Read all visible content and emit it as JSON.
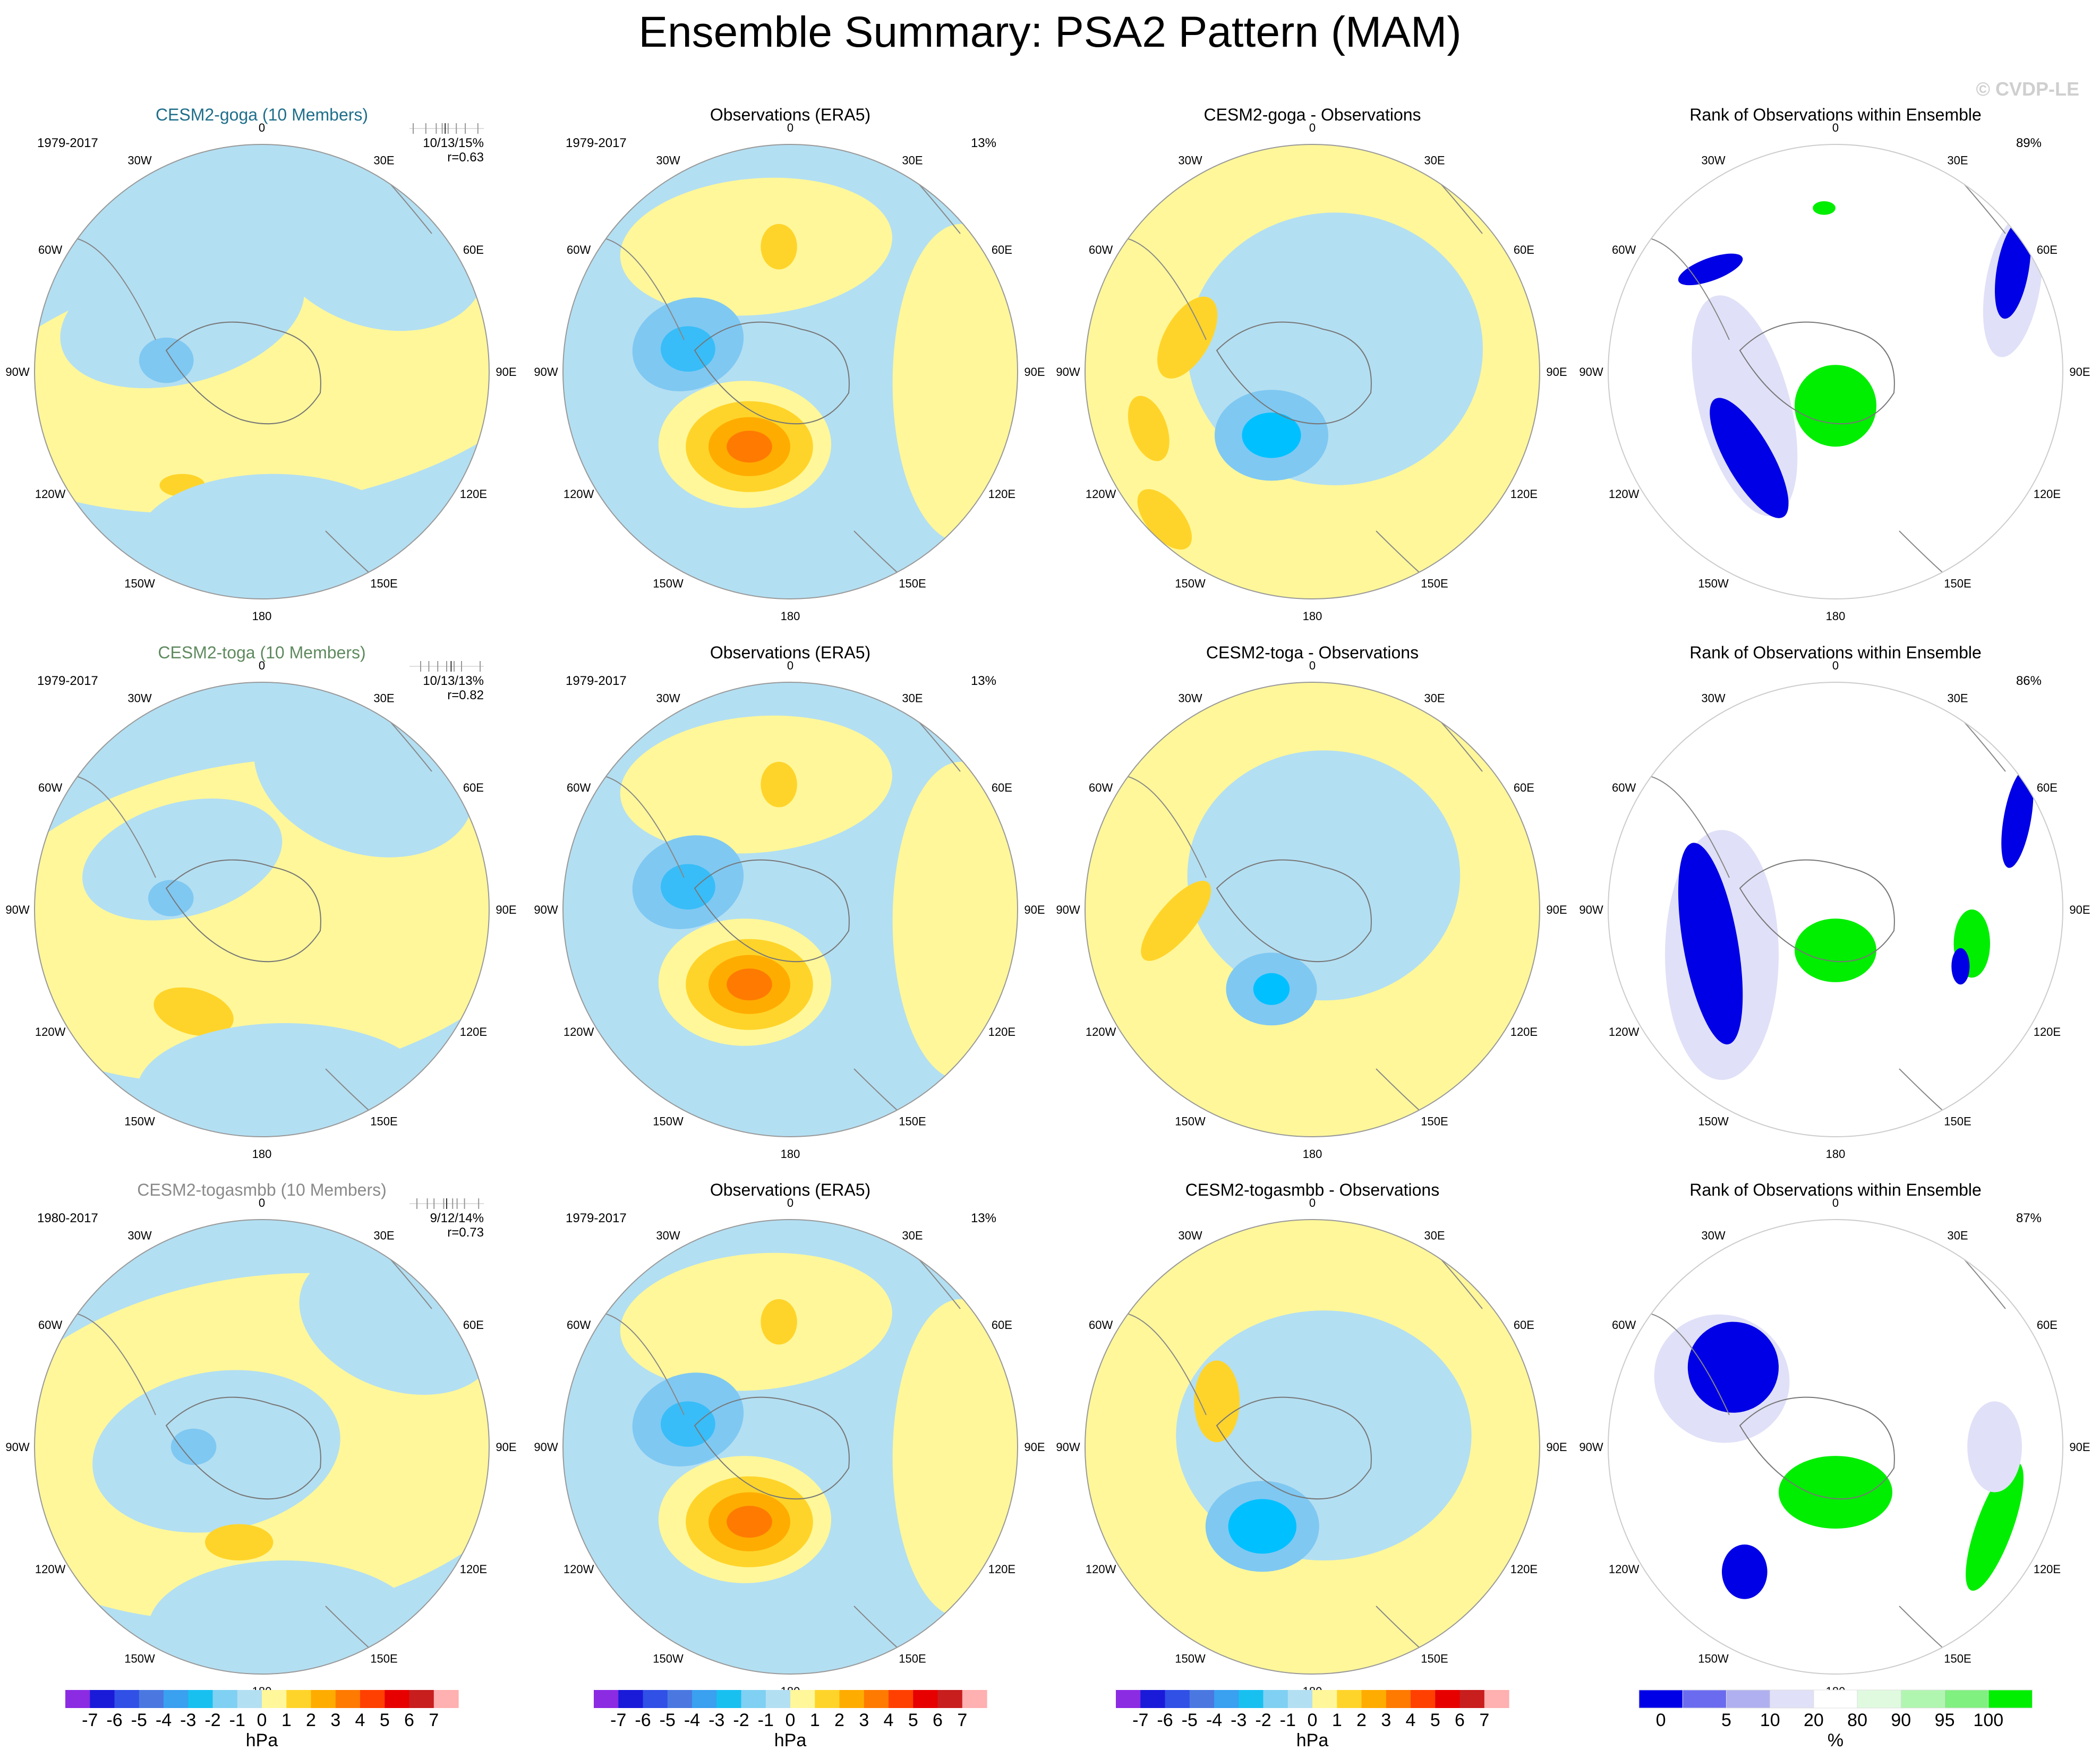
{
  "page": {
    "title": "Ensemble Summary: PSA2 Pattern (MAM)",
    "watermark": "© CVDP-LE"
  },
  "lon_labels": [
    "0",
    "30E",
    "60E",
    "90E",
    "120E",
    "150E",
    "180",
    "150W",
    "120W",
    "90W",
    "60W",
    "30W"
  ],
  "rows": [
    {
      "model_title": "CESM2-goga (10 Members)",
      "title_color": "#1f6f8b",
      "model_years": "1979-2017",
      "stats": "10/13/15%",
      "corr": "r=0.63",
      "ticks": [
        0.05,
        0.22,
        0.36,
        0.44,
        0.48,
        0.52,
        0.63,
        0.75,
        0.92
      ],
      "obs_title": "Observations (ERA5)",
      "obs_years": "1979-2017",
      "obs_pct": "13%",
      "diff_title": "CESM2-goga - Observations",
      "rank_title": "Rank of Observations within Ensemble",
      "rank_pct": "89%"
    },
    {
      "model_title": "CESM2-toga (10 Members)",
      "title_color": "#5f8a5f",
      "model_years": "1979-2017",
      "stats": "10/13/13%",
      "corr": "r=0.82",
      "ticks": [
        0.15,
        0.26,
        0.38,
        0.5,
        0.56,
        0.6,
        0.7,
        0.95
      ],
      "obs_title": "Observations (ERA5)",
      "obs_years": "1979-2017",
      "obs_pct": "13%",
      "diff_title": "CESM2-toga - Observations",
      "rank_title": "Rank of Observations within Ensemble",
      "rank_pct": "86%"
    },
    {
      "model_title": "CESM2-togasmbb (10 Members)",
      "title_color": "#8a8a8a",
      "model_years": "1980-2017",
      "stats": "9/12/14%",
      "corr": "r=0.73",
      "ticks": [
        0.1,
        0.24,
        0.33,
        0.46,
        0.5,
        0.58,
        0.64,
        0.74,
        0.93
      ],
      "obs_title": "Observations (ERA5)",
      "obs_years": "1979-2017",
      "obs_pct": "13%",
      "diff_title": "CESM2-togasmbb - Observations",
      "rank_title": "Rank of Observations within Ensemble",
      "rank_pct": "87%"
    }
  ],
  "colorbar_hpa": {
    "labels": [
      "-7",
      "-6",
      "-5",
      "-4",
      "-3",
      "-2",
      "-1",
      "0",
      "1",
      "2",
      "3",
      "4",
      "5",
      "6",
      "7"
    ],
    "colors": [
      "#8b2be2",
      "#1a1ad9",
      "#3050e6",
      "#4a78e0",
      "#3aa0f0",
      "#18c0f0",
      "#7fd0f2",
      "#b3dff2",
      "#fff79a",
      "#ffd42a",
      "#ffac00",
      "#ff7a00",
      "#ff4000",
      "#e60000",
      "#c81e1e",
      "#ffb0b0"
    ],
    "unit": "hPa"
  },
  "colorbar_rank": {
    "labels": [
      "0",
      "5",
      "10",
      "20",
      "80",
      "90",
      "95",
      "100"
    ],
    "colors": [
      "#0000e6",
      "#6b6bf0",
      "#b0b0f0",
      "#e0e0f8",
      "#ffffff",
      "#e0fae0",
      "#b0f5b0",
      "#80f080",
      "#00ee00"
    ],
    "unit": "%"
  },
  "palette": {
    "blue_light": "#b3dff2",
    "blue_mid": "#7fc8f2",
    "blue_dark": "#38bdf8",
    "blue_deep": "#00c0ff",
    "yellow": "#fff79a",
    "yellow_dark": "#ffd42a",
    "orange": "#ffac00",
    "orange_dark": "#ff7a00",
    "rank_blue": "#0000e6",
    "rank_lavender": "#e0e0f8",
    "rank_green": "#00ee00",
    "rank_lightgreen": "#e0fae0"
  },
  "chart_data": {
    "type": "heatmap",
    "description_units": "hPa",
    "projection": "south polar stereographic",
    "panels_per_row": [
      "model ensemble mean",
      "observations",
      "model minus observations",
      "rank of observations"
    ],
    "colorbar_levels_hpa": [
      -7,
      -6,
      -5,
      -4,
      -3,
      -2,
      -1,
      0,
      1,
      2,
      3,
      4,
      5,
      6,
      7
    ],
    "colorbar_levels_rank_pct": [
      0,
      5,
      10,
      20,
      80,
      90,
      95,
      100
    ]
  }
}
